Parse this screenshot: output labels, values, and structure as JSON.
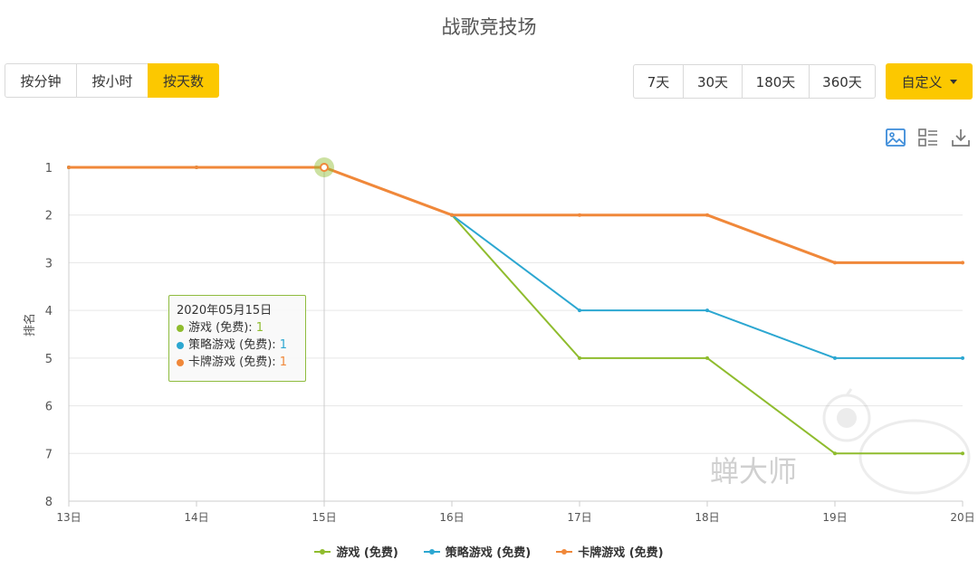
{
  "header": {
    "title": "战歌竞技场"
  },
  "granularity": {
    "buttons": [
      {
        "label": "按分钟",
        "active": false
      },
      {
        "label": "按小时",
        "active": false
      },
      {
        "label": "按天数",
        "active": true
      }
    ]
  },
  "ranges": {
    "buttons": [
      "7天",
      "30天",
      "180天",
      "360天"
    ],
    "custom_label": "自定义"
  },
  "toolbar": {
    "icons": [
      "image-icon",
      "list-icon",
      "download-icon"
    ]
  },
  "watermark": "蝉大师",
  "tooltip": {
    "date": "2020年05月15日",
    "rows": [
      {
        "name": "游戏 (免费)",
        "value": "1",
        "color": "#8fbc2e"
      },
      {
        "name": "策略游戏 (免费)",
        "value": "1",
        "color": "#2ca7d1"
      },
      {
        "name": "卡牌游戏 (免费)",
        "value": "1",
        "color": "#f0883a"
      }
    ]
  },
  "chart_data": {
    "type": "line",
    "ylabel": "排名",
    "categories": [
      "13日",
      "14日",
      "15日",
      "16日",
      "17日",
      "18日",
      "19日",
      "20日"
    ],
    "y_ticks": [
      "1",
      "2",
      "3",
      "4",
      "5",
      "6",
      "7",
      "8"
    ],
    "ylim": [
      1,
      8
    ],
    "y_inverted": true,
    "grid": true,
    "legend_position": "bottom",
    "highlight_category": "15日",
    "series": [
      {
        "name": "游戏 (免费)",
        "color": "#8fbc2e",
        "values": [
          1,
          1,
          1,
          2,
          5,
          5,
          7,
          7
        ]
      },
      {
        "name": "策略游戏 (免费)",
        "color": "#2ca7d1",
        "values": [
          1,
          1,
          1,
          2,
          4,
          4,
          5,
          5
        ]
      },
      {
        "name": "卡牌游戏 (免费)",
        "color": "#f0883a",
        "values": [
          1,
          1,
          1,
          2,
          2,
          2,
          3,
          3
        ]
      }
    ]
  }
}
